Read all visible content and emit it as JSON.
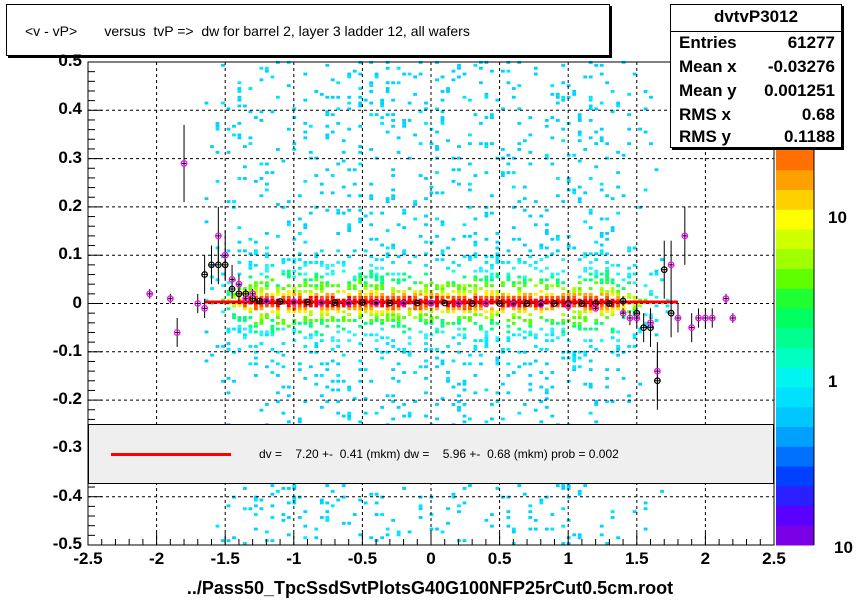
{
  "title": "<v - vP>       versus  tvP =>  dw for barrel 2, layer 3 ladder 12, all wafers",
  "stats": {
    "name": "dvtvP3012",
    "rows": [
      {
        "key": "Entries",
        "value": "61277"
      },
      {
        "key": "Mean x",
        "value": "-0.03276"
      },
      {
        "key": "Mean y",
        "value": "0.001251"
      },
      {
        "key": "RMS x",
        "value": "0.68"
      },
      {
        "key": "RMS y",
        "value": "0.1188"
      }
    ]
  },
  "fit_text": "dv =    7.20 +-  0.41 (mkm) dw =    5.96 +-  0.68 (mkm) prob = 0.002",
  "xlabel": "../Pass50_TpcSsdSvtPlotsG40G100NFP25rCut0.5cm.root",
  "colors": {
    "fit_line": "#ff0000",
    "profile_black": "#000000",
    "profile_magenta": "#ff00ff",
    "grid": "#000000"
  },
  "chart_data": {
    "type": "heatmap",
    "title": "<v - vP>       versus  tvP =>  dw for barrel 2, layer 3 ladder 12, all wafers",
    "xlabel": "../Pass50_TpcSsdSvtPlotsG40G100NFP25rCut0.5cm.root",
    "ylabel": "",
    "xlim": [
      -2.5,
      2.5
    ],
    "ylim": [
      -0.5,
      0.5
    ],
    "x_ticks": [
      "-2.5",
      "-2",
      "-1.5",
      "-1",
      "-0.5",
      "0",
      "0.5",
      "1",
      "1.5",
      "2",
      "2.5"
    ],
    "y_ticks": [
      "-0.5",
      "-0.4",
      "-0.3",
      "-0.2",
      "-0.1",
      "0",
      "0.1",
      "0.2",
      "0.3",
      "0.4",
      "0.5"
    ],
    "z_scale": "log",
    "z_ticks": [
      "1",
      "10"
    ],
    "z_range_label": "10",
    "grid": true,
    "fit": {
      "x_range": [
        -1.65,
        1.8
      ],
      "y_value": 0.003
    },
    "profile_black": {
      "x": [
        -1.65,
        -1.6,
        -1.55,
        -1.5,
        -1.45,
        -1.4,
        -1.35,
        -1.3,
        -1.25,
        -1.2,
        -1.1,
        -1.0,
        -0.9,
        -0.8,
        -0.7,
        -0.6,
        -0.5,
        -0.4,
        -0.3,
        -0.2,
        -0.1,
        0.0,
        0.1,
        0.2,
        0.3,
        0.4,
        0.5,
        0.6,
        0.7,
        0.8,
        0.9,
        1.0,
        1.1,
        1.2,
        1.3,
        1.4,
        1.5,
        1.55,
        1.6,
        1.65,
        1.7,
        1.75
      ],
      "y": [
        0.06,
        0.08,
        0.08,
        0.08,
        0.03,
        0.02,
        0.02,
        0.01,
        0.005,
        0.005,
        0.004,
        0.003,
        0.003,
        0.002,
        0.002,
        0.002,
        0.002,
        0.002,
        0.001,
        0.001,
        0.001,
        0.001,
        0.001,
        0.0,
        0.0,
        0.0,
        0.0,
        0.0,
        0.0,
        0.0,
        0.0,
        0.0,
        0.0,
        0.0,
        0.0,
        0.005,
        -0.02,
        -0.05,
        -0.05,
        -0.16,
        0.07,
        -0.02
      ],
      "err": [
        0.04,
        0.04,
        0.04,
        0.03,
        0.02,
        0.015,
        0.01,
        0.008,
        0.005,
        0.004,
        0.003,
        0.003,
        0.002,
        0.002,
        0.002,
        0.002,
        0.002,
        0.002,
        0.002,
        0.002,
        0.002,
        0.002,
        0.002,
        0.002,
        0.002,
        0.002,
        0.002,
        0.002,
        0.002,
        0.002,
        0.002,
        0.003,
        0.003,
        0.004,
        0.006,
        0.01,
        0.02,
        0.03,
        0.04,
        0.06,
        0.06,
        0.05
      ]
    },
    "profile_magenta": {
      "x": [
        -2.05,
        -1.9,
        -1.85,
        -1.8,
        -1.7,
        -1.65,
        -1.55,
        -1.5,
        -1.45,
        -1.4,
        -1.35,
        -1.3,
        -1.2,
        -1.0,
        -0.8,
        -0.6,
        -0.4,
        -0.2,
        0.0,
        0.2,
        0.4,
        0.6,
        0.8,
        1.0,
        1.2,
        1.4,
        1.45,
        1.5,
        1.6,
        1.65,
        1.75,
        1.8,
        1.85,
        1.9,
        1.95,
        2.0,
        2.05,
        2.15,
        2.2
      ],
      "y": [
        0.02,
        0.01,
        -0.06,
        0.29,
        0.0,
        -0.01,
        0.14,
        0.1,
        0.05,
        0.04,
        0.01,
        0.02,
        0.005,
        0.003,
        0.002,
        0.001,
        0.001,
        0.0,
        0.0,
        0.0,
        0.0,
        -0.001,
        -0.002,
        -0.005,
        -0.01,
        -0.02,
        -0.03,
        -0.03,
        -0.04,
        -0.14,
        0.08,
        -0.03,
        0.14,
        -0.05,
        -0.03,
        -0.03,
        -0.03,
        0.01,
        -0.03
      ],
      "err": [
        0.01,
        0.01,
        0.03,
        0.08,
        0.02,
        0.02,
        0.06,
        0.05,
        0.03,
        0.02,
        0.01,
        0.01,
        0.004,
        0.003,
        0.002,
        0.002,
        0.002,
        0.002,
        0.002,
        0.002,
        0.002,
        0.002,
        0.002,
        0.003,
        0.004,
        0.01,
        0.015,
        0.02,
        0.03,
        0.06,
        0.05,
        0.03,
        0.06,
        0.03,
        0.02,
        0.02,
        0.02,
        0.01,
        0.01
      ]
    }
  }
}
